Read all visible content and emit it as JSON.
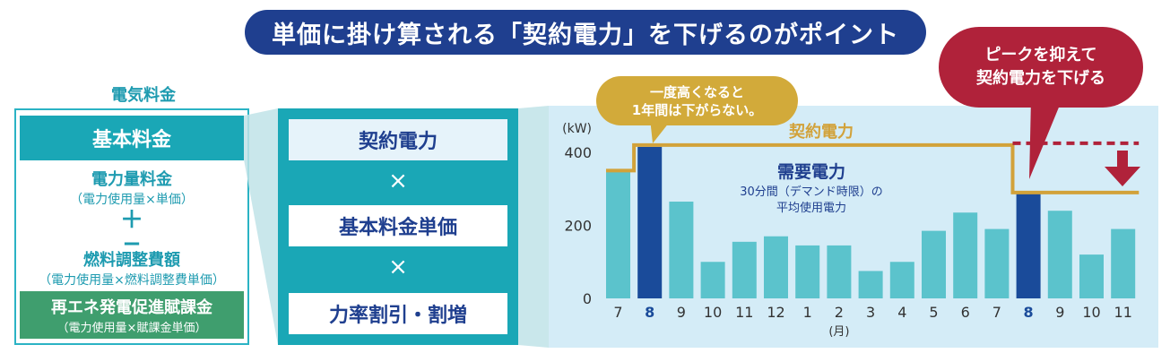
{
  "banner": {
    "title": "単価に掛け算される「契約電力」を下げるのがポイント"
  },
  "fee": {
    "label": "電気料金",
    "base": "基本料金",
    "power_title": "電力量料金",
    "power_sub": "（電力使用量×単価）",
    "plus": "＋",
    "minus": "−",
    "fuel_title": "燃料調整費額",
    "fuel_sub": "（電力使用量×燃料調整費単価）",
    "renew_title": "再エネ発電促進賦課金",
    "renew_sub": "（電力使用量×賦課金単価）"
  },
  "formula": {
    "contract": "契約電力",
    "times1": "×",
    "unit_price": "基本料金単価",
    "times2": "×",
    "power_factor": "力率割引・割増"
  },
  "callouts": {
    "once_high_line1": "一度高くなると",
    "once_high_line2": "1年間は下がらない。",
    "peak_line1": "ピークを抑えて",
    "peak_line2": "契約電力を下げる"
  },
  "labels": {
    "contract_power": "契約電力",
    "demand_power": "需要電力",
    "demand_sub_line1": "30分間（デマンド時限）の",
    "demand_sub_line2": "平均使用電力"
  },
  "colors": {
    "bar": "#5bc3cc",
    "bar_highlight": "#1a4b9a",
    "contract_line": "#d2a23a",
    "target_line": "#b0223a"
  },
  "chart_data": {
    "type": "bar",
    "ylabel": "(kW)",
    "xunit": "(月)",
    "ylim": [
      0,
      450
    ],
    "yticks": [
      0,
      200,
      400
    ],
    "categories": [
      "7",
      "8",
      "9",
      "10",
      "11",
      "12",
      "1",
      "2",
      "3",
      "4",
      "5",
      "6",
      "7",
      "8",
      "9",
      "10",
      "11"
    ],
    "values": [
      350,
      415,
      265,
      100,
      155,
      170,
      145,
      145,
      75,
      100,
      185,
      235,
      190,
      290,
      240,
      120,
      190
    ],
    "highlight_indices": [
      1,
      13
    ],
    "contract_power_series": [
      350,
      420,
      420,
      420,
      420,
      420,
      420,
      420,
      420,
      420,
      420,
      420,
      420,
      290,
      290,
      290,
      290
    ],
    "target_level": 420
  }
}
